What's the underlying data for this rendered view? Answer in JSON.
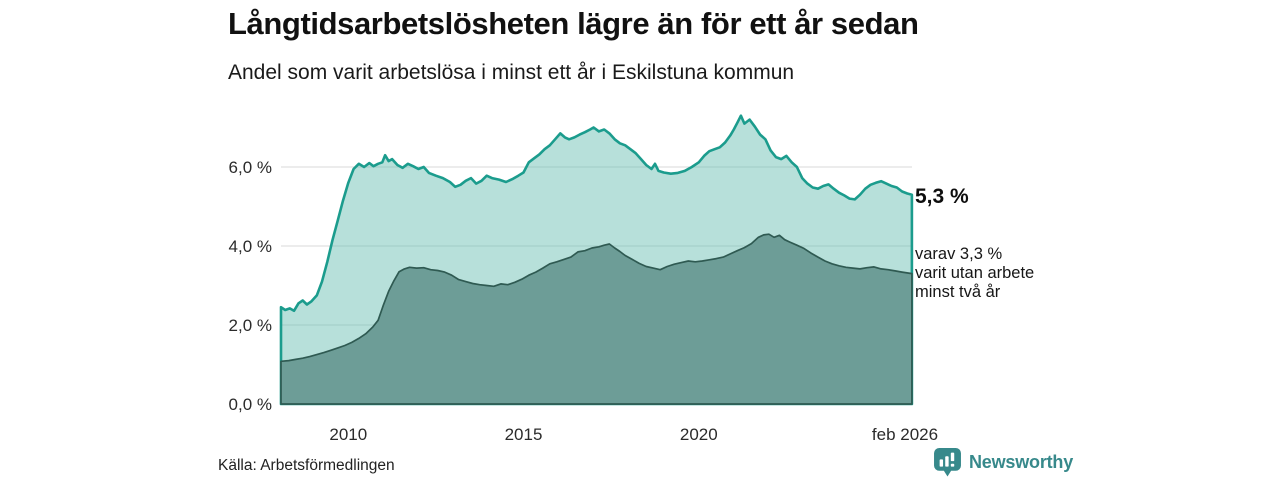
{
  "chart_data": {
    "type": "area",
    "title": "Långtidsarbetslösheten lägre än för ett år sedan",
    "subtitle": "Andel som varit arbetslösa i minst ett år i Eskilstuna kommun",
    "x_range": [
      2008.08,
      2026.083
    ],
    "y_range": [
      0,
      7.5
    ],
    "grid": true,
    "grid_color": "#d9d9d9",
    "legend_position": "none",
    "x_ticks": [
      {
        "v": 2010,
        "label": "2010"
      },
      {
        "v": 2015,
        "label": "2015"
      },
      {
        "v": 2020,
        "label": "2020"
      },
      {
        "v": 2026.083,
        "label": "feb 2026"
      }
    ],
    "y_ticks": [
      {
        "v": 0,
        "label": "0,0 %"
      },
      {
        "v": 2,
        "label": "2,0 %"
      },
      {
        "v": 4,
        "label": "4,0 %"
      },
      {
        "v": 6,
        "label": "6,0 %"
      }
    ],
    "annotations": {
      "latest_value": "5,3 %",
      "two_year_note": "varav 3,3 %\nvarit utan arbete\nminst två år"
    },
    "latest": {
      "at_least_one_year_pct": 5.3,
      "at_least_two_years_pct": 3.3
    },
    "series": [
      {
        "id": "area-at-least-one-year",
        "name": "Arbetslösa minst ett år",
        "line_color": "#1b9c8d",
        "fill_color": "rgba(96,187,172,0.45)",
        "line_width": 2.6,
        "points": [
          [
            2008.08,
            2.45
          ],
          [
            2008.2,
            2.38
          ],
          [
            2008.33,
            2.42
          ],
          [
            2008.45,
            2.36
          ],
          [
            2008.58,
            2.55
          ],
          [
            2008.7,
            2.62
          ],
          [
            2008.82,
            2.52
          ],
          [
            2008.95,
            2.6
          ],
          [
            2009.1,
            2.75
          ],
          [
            2009.25,
            3.1
          ],
          [
            2009.4,
            3.6
          ],
          [
            2009.55,
            4.15
          ],
          [
            2009.7,
            4.65
          ],
          [
            2009.85,
            5.15
          ],
          [
            2010.0,
            5.6
          ],
          [
            2010.15,
            5.95
          ],
          [
            2010.3,
            6.08
          ],
          [
            2010.45,
            6.0
          ],
          [
            2010.6,
            6.1
          ],
          [
            2010.72,
            6.02
          ],
          [
            2010.85,
            6.08
          ],
          [
            2010.97,
            6.12
          ],
          [
            2011.05,
            6.3
          ],
          [
            2011.15,
            6.15
          ],
          [
            2011.25,
            6.2
          ],
          [
            2011.4,
            6.05
          ],
          [
            2011.55,
            5.98
          ],
          [
            2011.7,
            6.08
          ],
          [
            2011.85,
            6.02
          ],
          [
            2012.0,
            5.95
          ],
          [
            2012.15,
            6.0
          ],
          [
            2012.3,
            5.85
          ],
          [
            2012.5,
            5.78
          ],
          [
            2012.7,
            5.72
          ],
          [
            2012.9,
            5.62
          ],
          [
            2013.05,
            5.5
          ],
          [
            2013.2,
            5.55
          ],
          [
            2013.35,
            5.65
          ],
          [
            2013.5,
            5.72
          ],
          [
            2013.65,
            5.58
          ],
          [
            2013.8,
            5.65
          ],
          [
            2013.95,
            5.78
          ],
          [
            2014.1,
            5.72
          ],
          [
            2014.3,
            5.68
          ],
          [
            2014.5,
            5.62
          ],
          [
            2014.7,
            5.7
          ],
          [
            2014.85,
            5.78
          ],
          [
            2015.0,
            5.86
          ],
          [
            2015.15,
            6.12
          ],
          [
            2015.3,
            6.22
          ],
          [
            2015.45,
            6.32
          ],
          [
            2015.6,
            6.45
          ],
          [
            2015.75,
            6.55
          ],
          [
            2015.9,
            6.7
          ],
          [
            2016.05,
            6.85
          ],
          [
            2016.18,
            6.75
          ],
          [
            2016.3,
            6.7
          ],
          [
            2016.45,
            6.75
          ],
          [
            2016.6,
            6.82
          ],
          [
            2016.75,
            6.88
          ],
          [
            2016.9,
            6.95
          ],
          [
            2017.0,
            7.0
          ],
          [
            2017.15,
            6.9
          ],
          [
            2017.3,
            6.95
          ],
          [
            2017.45,
            6.85
          ],
          [
            2017.6,
            6.7
          ],
          [
            2017.75,
            6.6
          ],
          [
            2017.9,
            6.55
          ],
          [
            2018.05,
            6.45
          ],
          [
            2018.2,
            6.35
          ],
          [
            2018.35,
            6.2
          ],
          [
            2018.5,
            6.05
          ],
          [
            2018.65,
            5.95
          ],
          [
            2018.75,
            6.08
          ],
          [
            2018.85,
            5.9
          ],
          [
            2019.0,
            5.86
          ],
          [
            2019.2,
            5.83
          ],
          [
            2019.4,
            5.85
          ],
          [
            2019.6,
            5.9
          ],
          [
            2019.8,
            6.0
          ],
          [
            2020.0,
            6.12
          ],
          [
            2020.15,
            6.28
          ],
          [
            2020.3,
            6.4
          ],
          [
            2020.45,
            6.45
          ],
          [
            2020.6,
            6.5
          ],
          [
            2020.75,
            6.62
          ],
          [
            2020.9,
            6.8
          ],
          [
            2021.0,
            6.95
          ],
          [
            2021.1,
            7.12
          ],
          [
            2021.2,
            7.3
          ],
          [
            2021.3,
            7.1
          ],
          [
            2021.45,
            7.2
          ],
          [
            2021.6,
            7.02
          ],
          [
            2021.75,
            6.82
          ],
          [
            2021.9,
            6.7
          ],
          [
            2022.05,
            6.42
          ],
          [
            2022.2,
            6.25
          ],
          [
            2022.35,
            6.2
          ],
          [
            2022.5,
            6.28
          ],
          [
            2022.65,
            6.12
          ],
          [
            2022.8,
            6.0
          ],
          [
            2022.95,
            5.72
          ],
          [
            2023.1,
            5.58
          ],
          [
            2023.25,
            5.48
          ],
          [
            2023.4,
            5.45
          ],
          [
            2023.55,
            5.52
          ],
          [
            2023.7,
            5.56
          ],
          [
            2023.85,
            5.45
          ],
          [
            2024.0,
            5.35
          ],
          [
            2024.15,
            5.28
          ],
          [
            2024.3,
            5.2
          ],
          [
            2024.45,
            5.18
          ],
          [
            2024.6,
            5.3
          ],
          [
            2024.75,
            5.45
          ],
          [
            2024.9,
            5.55
          ],
          [
            2025.05,
            5.6
          ],
          [
            2025.2,
            5.64
          ],
          [
            2025.35,
            5.58
          ],
          [
            2025.5,
            5.52
          ],
          [
            2025.65,
            5.48
          ],
          [
            2025.8,
            5.38
          ],
          [
            2025.95,
            5.33
          ],
          [
            2026.08,
            5.3
          ]
        ]
      },
      {
        "id": "area-at-least-two-years",
        "name": "varav arbetslösa minst två år",
        "line_color": "#2f5a52",
        "fill_color": "#6d9d97",
        "line_width": 1.7,
        "points": [
          [
            2008.08,
            1.08
          ],
          [
            2008.3,
            1.1
          ],
          [
            2008.5,
            1.13
          ],
          [
            2008.7,
            1.16
          ],
          [
            2008.9,
            1.2
          ],
          [
            2009.1,
            1.25
          ],
          [
            2009.3,
            1.3
          ],
          [
            2009.5,
            1.36
          ],
          [
            2009.7,
            1.42
          ],
          [
            2009.9,
            1.48
          ],
          [
            2010.1,
            1.56
          ],
          [
            2010.3,
            1.66
          ],
          [
            2010.5,
            1.78
          ],
          [
            2010.7,
            1.95
          ],
          [
            2010.85,
            2.12
          ],
          [
            2011.0,
            2.5
          ],
          [
            2011.15,
            2.85
          ],
          [
            2011.3,
            3.12
          ],
          [
            2011.45,
            3.35
          ],
          [
            2011.6,
            3.42
          ],
          [
            2011.75,
            3.46
          ],
          [
            2011.95,
            3.44
          ],
          [
            2012.15,
            3.45
          ],
          [
            2012.35,
            3.4
          ],
          [
            2012.55,
            3.38
          ],
          [
            2012.75,
            3.34
          ],
          [
            2012.95,
            3.26
          ],
          [
            2013.15,
            3.15
          ],
          [
            2013.35,
            3.1
          ],
          [
            2013.55,
            3.05
          ],
          [
            2013.75,
            3.02
          ],
          [
            2013.95,
            3.0
          ],
          [
            2014.15,
            2.98
          ],
          [
            2014.35,
            3.04
          ],
          [
            2014.55,
            3.02
          ],
          [
            2014.75,
            3.08
          ],
          [
            2014.95,
            3.16
          ],
          [
            2015.15,
            3.26
          ],
          [
            2015.35,
            3.34
          ],
          [
            2015.55,
            3.44
          ],
          [
            2015.75,
            3.55
          ],
          [
            2015.95,
            3.6
          ],
          [
            2016.15,
            3.66
          ],
          [
            2016.35,
            3.72
          ],
          [
            2016.55,
            3.85
          ],
          [
            2016.75,
            3.88
          ],
          [
            2016.95,
            3.95
          ],
          [
            2017.15,
            3.98
          ],
          [
            2017.3,
            4.02
          ],
          [
            2017.45,
            4.05
          ],
          [
            2017.6,
            3.95
          ],
          [
            2017.75,
            3.86
          ],
          [
            2017.9,
            3.76
          ],
          [
            2018.1,
            3.66
          ],
          [
            2018.3,
            3.56
          ],
          [
            2018.5,
            3.48
          ],
          [
            2018.7,
            3.44
          ],
          [
            2018.9,
            3.4
          ],
          [
            2019.1,
            3.48
          ],
          [
            2019.3,
            3.54
          ],
          [
            2019.5,
            3.58
          ],
          [
            2019.7,
            3.62
          ],
          [
            2019.9,
            3.6
          ],
          [
            2020.1,
            3.62
          ],
          [
            2020.3,
            3.65
          ],
          [
            2020.5,
            3.68
          ],
          [
            2020.7,
            3.72
          ],
          [
            2020.9,
            3.8
          ],
          [
            2021.1,
            3.88
          ],
          [
            2021.3,
            3.96
          ],
          [
            2021.5,
            4.06
          ],
          [
            2021.7,
            4.22
          ],
          [
            2021.85,
            4.28
          ],
          [
            2022.0,
            4.3
          ],
          [
            2022.15,
            4.22
          ],
          [
            2022.3,
            4.27
          ],
          [
            2022.45,
            4.16
          ],
          [
            2022.6,
            4.1
          ],
          [
            2022.8,
            4.02
          ],
          [
            2023.0,
            3.94
          ],
          [
            2023.2,
            3.82
          ],
          [
            2023.4,
            3.72
          ],
          [
            2023.6,
            3.62
          ],
          [
            2023.8,
            3.55
          ],
          [
            2024.0,
            3.5
          ],
          [
            2024.2,
            3.46
          ],
          [
            2024.4,
            3.44
          ],
          [
            2024.6,
            3.42
          ],
          [
            2024.8,
            3.45
          ],
          [
            2025.0,
            3.47
          ],
          [
            2025.2,
            3.42
          ],
          [
            2025.4,
            3.4
          ],
          [
            2025.6,
            3.37
          ],
          [
            2025.8,
            3.34
          ],
          [
            2026.08,
            3.3
          ]
        ]
      }
    ]
  },
  "footer": {
    "source": "Källa: Arbetsförmedlingen",
    "logo_text": "Newsworthy"
  },
  "brand": {
    "accent_teal": "#1b9c8d",
    "logo_teal": "#37898b"
  }
}
